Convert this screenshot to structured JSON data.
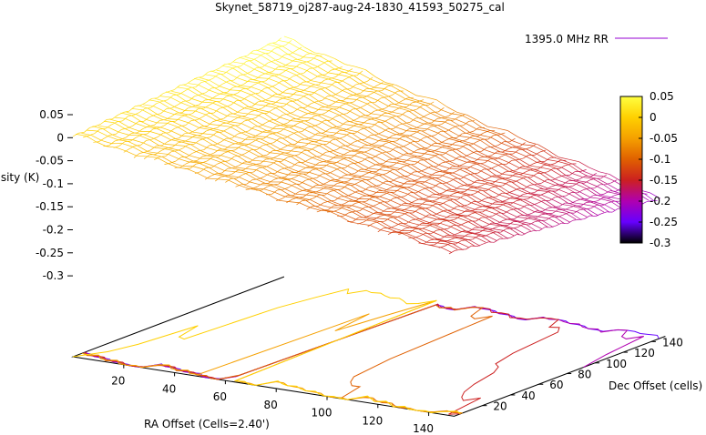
{
  "chart_data": {
    "type": "surface3d",
    "title": "Skynet_58719_oj287-aug-24-1830_41593_50275_cal",
    "xlabel": "RA Offset (Cells=2.40')",
    "ylabel": "Dec Offset (cells)",
    "zlabel": "Intensity (K)",
    "x_ticks": [
      "20",
      "40",
      "60",
      "80",
      "100",
      "120",
      "140"
    ],
    "y_ticks": [
      "20",
      "40",
      "60",
      "80",
      "100",
      "120",
      "140"
    ],
    "z_ticks": [
      "0.05",
      "0",
      "-0.05",
      "-0.1",
      "-0.15",
      "-0.2",
      "-0.25",
      "-0.3"
    ],
    "xlim": [
      0,
      150
    ],
    "ylim": [
      0,
      150
    ],
    "zlim": [
      -0.32,
      0.06
    ],
    "legend": {
      "position": "top-right",
      "label": "1395.0 MHz RR",
      "color": "#9400d3"
    },
    "colorbar": {
      "ticks": [
        "0.05",
        "0",
        "-0.05",
        "-0.1",
        "-0.15",
        "-0.2",
        "-0.25",
        "-0.3"
      ],
      "range": [
        -0.3,
        0.05
      ],
      "colors": [
        "#000000",
        "#6600ff",
        "#b000b0",
        "#cc2020",
        "#e06000",
        "#f5a000",
        "#ffd000",
        "#ffff40"
      ]
    },
    "contour_levels": [
      -0.25,
      -0.2,
      -0.15,
      -0.1,
      -0.05,
      0
    ],
    "surface_model": {
      "corner_values": {
        "x0_y0": 0.0,
        "x150_y0": -0.15,
        "x0_y150": 0.05,
        "x150_y150": -0.22
      }
    }
  }
}
